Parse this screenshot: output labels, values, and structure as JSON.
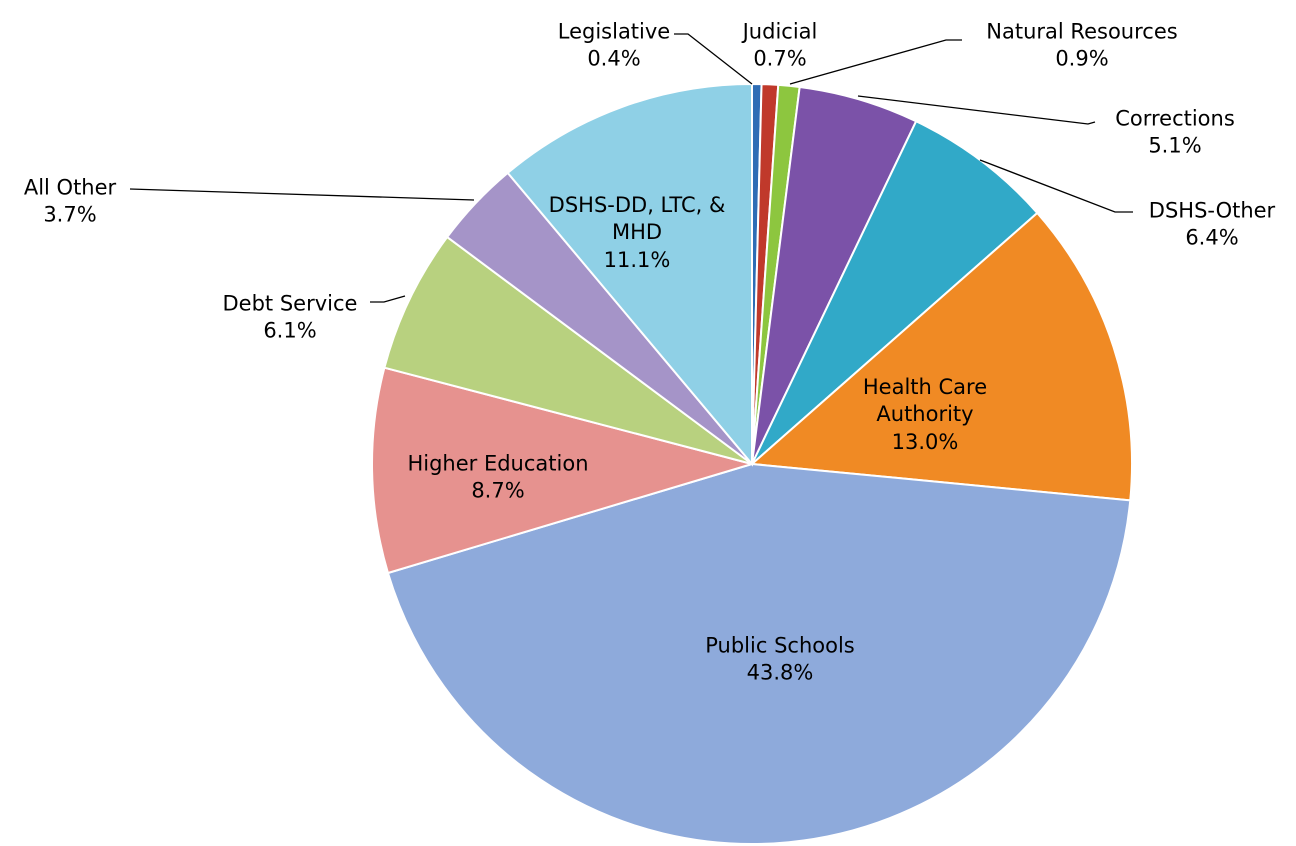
{
  "chart_data": {
    "type": "pie",
    "categories": [
      "Legislative",
      "Judicial",
      "Natural Resources",
      "Corrections",
      "DSHS-Other",
      "Health Care Authority",
      "Public Schools",
      "Higher Education",
      "Debt Service",
      "All Other",
      "DSHS-DD, LTC, & MHD"
    ],
    "values": [
      0.4,
      0.7,
      0.9,
      5.1,
      6.4,
      13.0,
      43.8,
      8.7,
      6.1,
      3.7,
      11.1
    ],
    "value_labels": [
      "0.4%",
      "0.7%",
      "0.9%",
      "5.1%",
      "6.4%",
      "13.0%",
      "43.8%",
      "8.7%",
      "6.1%",
      "3.7%",
      "11.1%"
    ],
    "colors": [
      "#2e6db5",
      "#c0392b",
      "#8dc63f",
      "#7b52a8",
      "#31a9c8",
      "#f08a24",
      "#8eaadb",
      "#e6928f",
      "#b8d17f",
      "#a594c8",
      "#8fd0e6"
    ]
  }
}
